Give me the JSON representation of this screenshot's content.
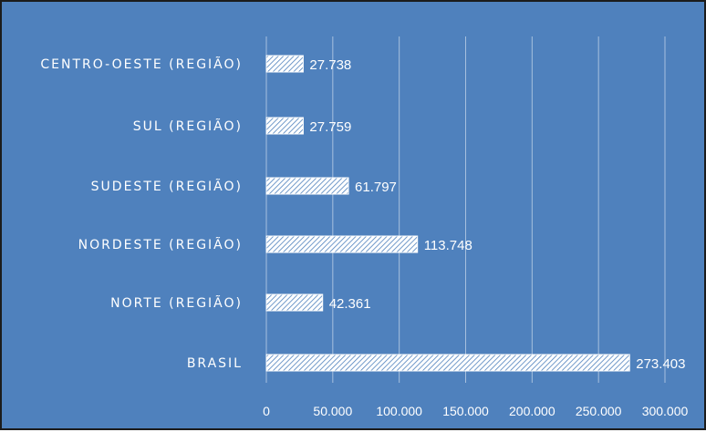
{
  "chart_data": {
    "type": "bar",
    "orientation": "horizontal",
    "categories": [
      "CENTRO-OESTE (REGIÃO)",
      "SUL (REGIÃO)",
      "SUDESTE (REGIÃO)",
      "NORDESTE (REGIÃO)",
      "NORTE (REGIÃO)",
      "BRASIL"
    ],
    "values": [
      27738,
      27759,
      61797,
      113748,
      42361,
      273403
    ],
    "value_labels": [
      "27.738",
      "27.759",
      "61.797",
      "113.748",
      "42.361",
      "273.403"
    ],
    "xlim": [
      0,
      300000
    ],
    "x_ticks": [
      0,
      50000,
      100000,
      150000,
      200000,
      250000,
      300000
    ],
    "x_tick_labels": [
      "0",
      "50.000",
      "100.000",
      "150.000",
      "200.000",
      "250.000",
      "300.000"
    ],
    "title": "",
    "xlabel": "",
    "ylabel": "",
    "grid": true,
    "legend": "none",
    "colors": {
      "background": "#4f81bd",
      "bar_fill": "#ffffff",
      "bar_hatch": "#4f81bd",
      "text": "#ffffff"
    }
  }
}
